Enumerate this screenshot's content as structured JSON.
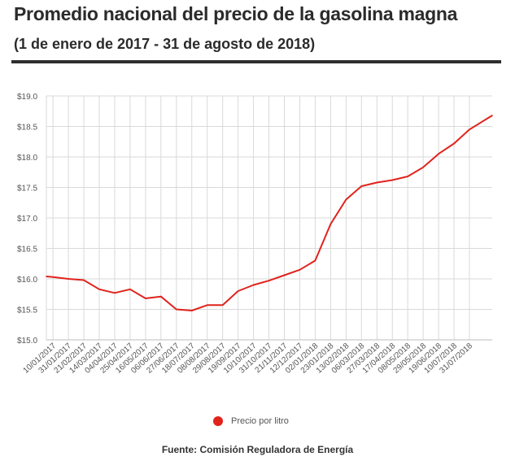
{
  "header": {
    "title": "Promedio nacional del precio de la gasolina magna",
    "subtitle": "(1 de enero de 2017 - 31 de agosto de 2018)"
  },
  "legend": {
    "label": "Precio por litro",
    "color": "#e0231c"
  },
  "footer": {
    "source": "Fuente: Comisión Reguladora de Energía"
  },
  "chart_data": {
    "type": "line",
    "title": "",
    "xlabel": "",
    "ylabel": "",
    "ylim": [
      15.0,
      19.0
    ],
    "y_ticks": [
      "$15.0",
      "$15.5",
      "$16.0",
      "$16.5",
      "$17.0",
      "$17.5",
      "$18.0",
      "$18.5",
      "$19.0"
    ],
    "x_ticks": [
      "10/01/2017",
      "31/01/2017",
      "21/02/2017",
      "14/03/2017",
      "04/04/2017",
      "25/04/2017",
      "16/05/2017",
      "06/06/2017",
      "27/06/2017",
      "18/07/2017",
      "08/08/2017",
      "29/08/2017",
      "19/09/2017",
      "10/10/2017",
      "31/10/2017",
      "21/11/2017",
      "12/12/2017",
      "02/01/2018",
      "23/01/2018",
      "13/02/2018",
      "06/03/2018",
      "27/03/2018",
      "17/04/2018",
      "08/05/2018",
      "29/05/2018",
      "19/06/2018",
      "10/07/2018",
      "31/07/2018"
    ],
    "grid": true,
    "legend_position": "bottom",
    "series": [
      {
        "name": "Precio por litro",
        "color": "#e0231c",
        "x": [
          "01/01/2017",
          "10/01/2017",
          "31/01/2017",
          "21/02/2017",
          "14/03/2017",
          "04/04/2017",
          "25/04/2017",
          "16/05/2017",
          "06/06/2017",
          "27/06/2017",
          "18/07/2017",
          "08/08/2017",
          "29/08/2017",
          "19/09/2017",
          "10/10/2017",
          "31/10/2017",
          "21/11/2017",
          "12/12/2017",
          "02/01/2018",
          "23/01/2018",
          "13/02/2018",
          "06/03/2018",
          "27/03/2018",
          "17/04/2018",
          "08/05/2018",
          "29/05/2018",
          "19/06/2018",
          "10/07/2018",
          "31/07/2018",
          "31/08/2018"
        ],
        "values": [
          16.04,
          16.03,
          16.0,
          15.98,
          15.83,
          15.77,
          15.83,
          15.68,
          15.71,
          15.5,
          15.48,
          15.57,
          15.57,
          15.8,
          15.9,
          15.97,
          16.06,
          16.15,
          16.3,
          16.9,
          17.3,
          17.52,
          17.58,
          17.62,
          17.68,
          17.83,
          18.05,
          18.22,
          18.45,
          18.68
        ]
      }
    ]
  }
}
